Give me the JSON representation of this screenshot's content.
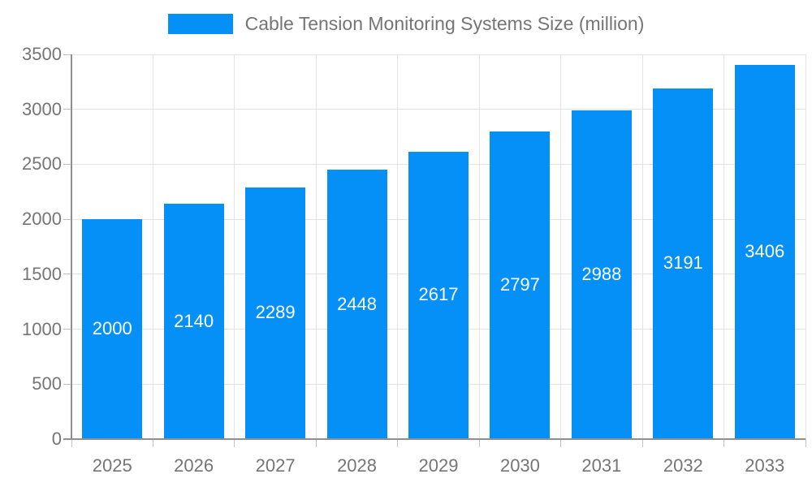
{
  "chart_data": {
    "type": "bar",
    "title": "Cable Tension Monitoring Systems Size (million)",
    "categories": [
      "2025",
      "2026",
      "2027",
      "2028",
      "2029",
      "2030",
      "2031",
      "2032",
      "2033"
    ],
    "values": [
      2000,
      2140,
      2289,
      2448,
      2617,
      2797,
      2988,
      3191,
      3406
    ],
    "xlabel": "",
    "ylabel": "",
    "ylim": [
      0,
      3500
    ],
    "y_ticks": [
      0,
      500,
      1000,
      1500,
      2000,
      2500,
      3000,
      3500
    ],
    "grid": true,
    "legend_position": "top",
    "data_labels": "inside-center",
    "colors": {
      "bar": "#0590f8",
      "axis_line": "#8f8f8f",
      "gridline": "#e3e3e3",
      "tick_mark": "#c2c2c2",
      "tick_label": "#757575",
      "legend_text": "#757575",
      "data_label": "#ffffff",
      "background": "#ffffff"
    }
  }
}
